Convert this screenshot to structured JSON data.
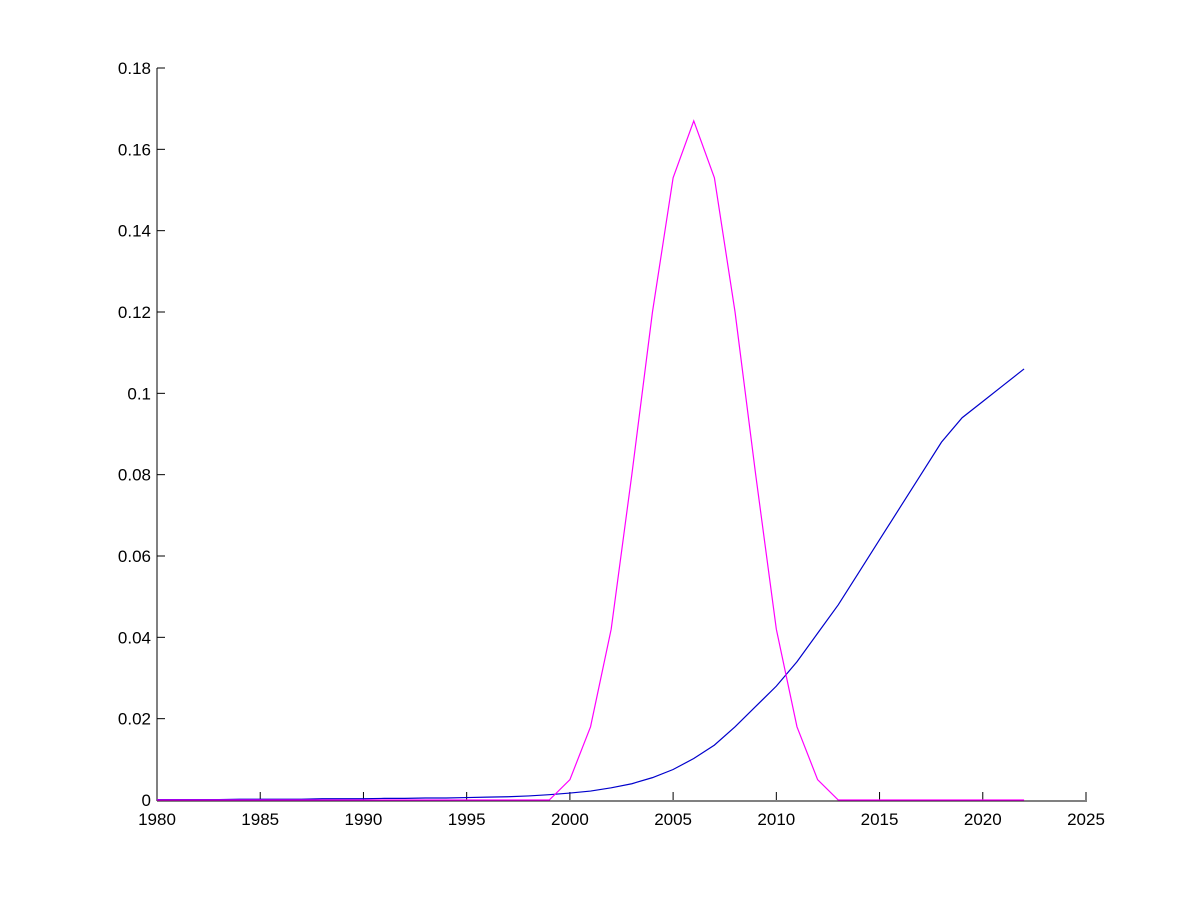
{
  "chart_data": {
    "type": "line",
    "x": [
      1980,
      1981,
      1982,
      1983,
      1984,
      1985,
      1986,
      1987,
      1988,
      1989,
      1990,
      1991,
      1992,
      1993,
      1994,
      1995,
      1996,
      1997,
      1998,
      1999,
      2000,
      2001,
      2002,
      2003,
      2004,
      2005,
      2006,
      2007,
      2008,
      2009,
      2010,
      2011,
      2012,
      2013,
      2014,
      2015,
      2016,
      2017,
      2018,
      2019,
      2020,
      2021,
      2022
    ],
    "series": [
      {
        "color": "#0000cc",
        "values": [
          0.0001,
          0.0001,
          0.0001,
          0.0001,
          0.0002,
          0.0002,
          0.0002,
          0.0002,
          0.0003,
          0.0003,
          0.0003,
          0.0004,
          0.0004,
          0.0005,
          0.0005,
          0.0006,
          0.0007,
          0.0008,
          0.001,
          0.0013,
          0.0017,
          0.0022,
          0.003,
          0.004,
          0.0055,
          0.0075,
          0.0102,
          0.0135,
          0.018,
          0.023,
          0.028,
          0.034,
          0.041,
          0.048,
          0.056,
          0.064,
          0.072,
          0.08,
          0.088,
          0.094,
          0.098,
          0.102,
          0.106
        ]
      },
      {
        "color": "#ff00ff",
        "values": [
          0,
          0,
          0,
          0,
          0,
          0,
          0,
          0,
          0,
          0,
          0,
          0,
          0,
          0,
          0,
          0,
          0,
          0,
          0,
          0,
          0.005,
          0.018,
          0.042,
          0.08,
          0.12,
          0.153,
          0.167,
          0.153,
          0.12,
          0.08,
          0.042,
          0.018,
          0.005,
          0,
          0,
          0,
          0,
          0,
          0,
          0,
          0,
          0,
          0
        ]
      }
    ],
    "xlim": [
      1980,
      2025
    ],
    "xticks": [
      1980,
      1985,
      1990,
      1995,
      2000,
      2005,
      2010,
      2015,
      2020,
      2025
    ],
    "ylim": [
      0,
      0.18
    ],
    "yticks": [
      0,
      0.02,
      0.04,
      0.06,
      0.08,
      0.1,
      0.12,
      0.14,
      0.16,
      0.18
    ]
  }
}
